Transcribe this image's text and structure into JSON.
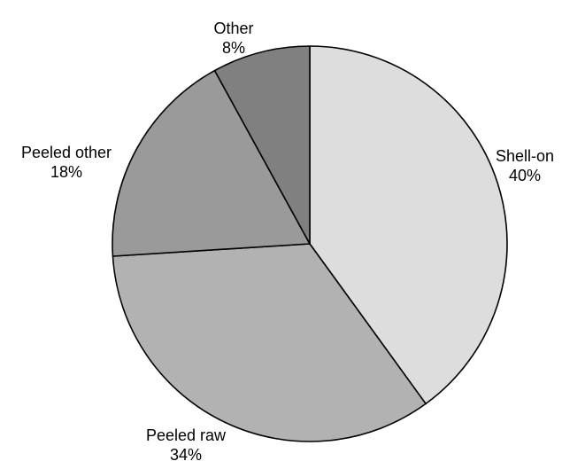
{
  "chart_data": {
    "type": "pie",
    "slices": [
      {
        "label": "Shell-on",
        "value": 40,
        "value_label": "40%",
        "color": "#dddddd"
      },
      {
        "label": "Peeled raw",
        "value": 34,
        "value_label": "34%",
        "color": "#b2b2b2"
      },
      {
        "label": "Peeled other",
        "value": 18,
        "value_label": "18%",
        "color": "#9a9a9a"
      },
      {
        "label": "Other",
        "value": 8,
        "value_label": "8%",
        "color": "#808080"
      }
    ],
    "start": "12 o'clock",
    "direction": "clockwise",
    "legend": "none",
    "title": ""
  }
}
